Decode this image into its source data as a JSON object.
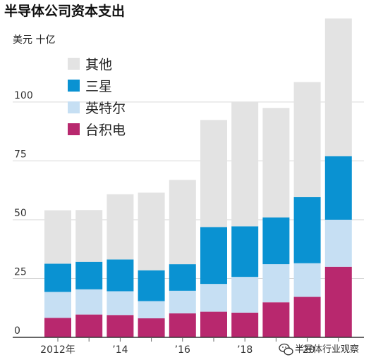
{
  "chart_data": {
    "type": "bar",
    "stacked": true,
    "title": "半导体公司资本支出",
    "unit_label": "美元 十亿",
    "categories": [
      "2012",
      "2013",
      "2014",
      "2015",
      "2016",
      "2017",
      "2018",
      "2019",
      "2020",
      "2021"
    ],
    "x_tick_labels": [
      {
        "category": "2012",
        "label": "2012年"
      },
      {
        "category": "2014",
        "label": "’14"
      },
      {
        "category": "2016",
        "label": "’16"
      },
      {
        "category": "2018",
        "label": "’18"
      },
      {
        "category": "2020",
        "label": "’20"
      }
    ],
    "y_ticks": [
      0,
      25,
      50,
      75,
      100
    ],
    "ylim": [
      0,
      135
    ],
    "grid": true,
    "legend_placement": "top-left",
    "series": [
      {
        "name": "台积电",
        "color": "#b8286e",
        "values": [
          8.3,
          9.7,
          9.5,
          8.1,
          10.2,
          10.9,
          10.5,
          14.9,
          17.2,
          30.0
        ]
      },
      {
        "name": "英特尔",
        "color": "#c6dff3",
        "values": [
          11.0,
          10.7,
          10.1,
          7.3,
          9.6,
          11.8,
          15.2,
          16.2,
          14.3,
          20.0
        ]
      },
      {
        "name": "三星",
        "color": "#0a92d2",
        "values": [
          12.0,
          11.7,
          13.5,
          13.1,
          11.3,
          24.2,
          21.5,
          19.9,
          28.1,
          27.0
        ]
      },
      {
        "name": "其他",
        "color": "#e3e3e3",
        "values": [
          22.7,
          22.0,
          27.7,
          33.0,
          35.8,
          45.5,
          52.8,
          46.5,
          48.9,
          58.5
        ]
      }
    ]
  },
  "watermark": {
    "icon": "wechat-icon",
    "text": "半导体行业观察"
  }
}
